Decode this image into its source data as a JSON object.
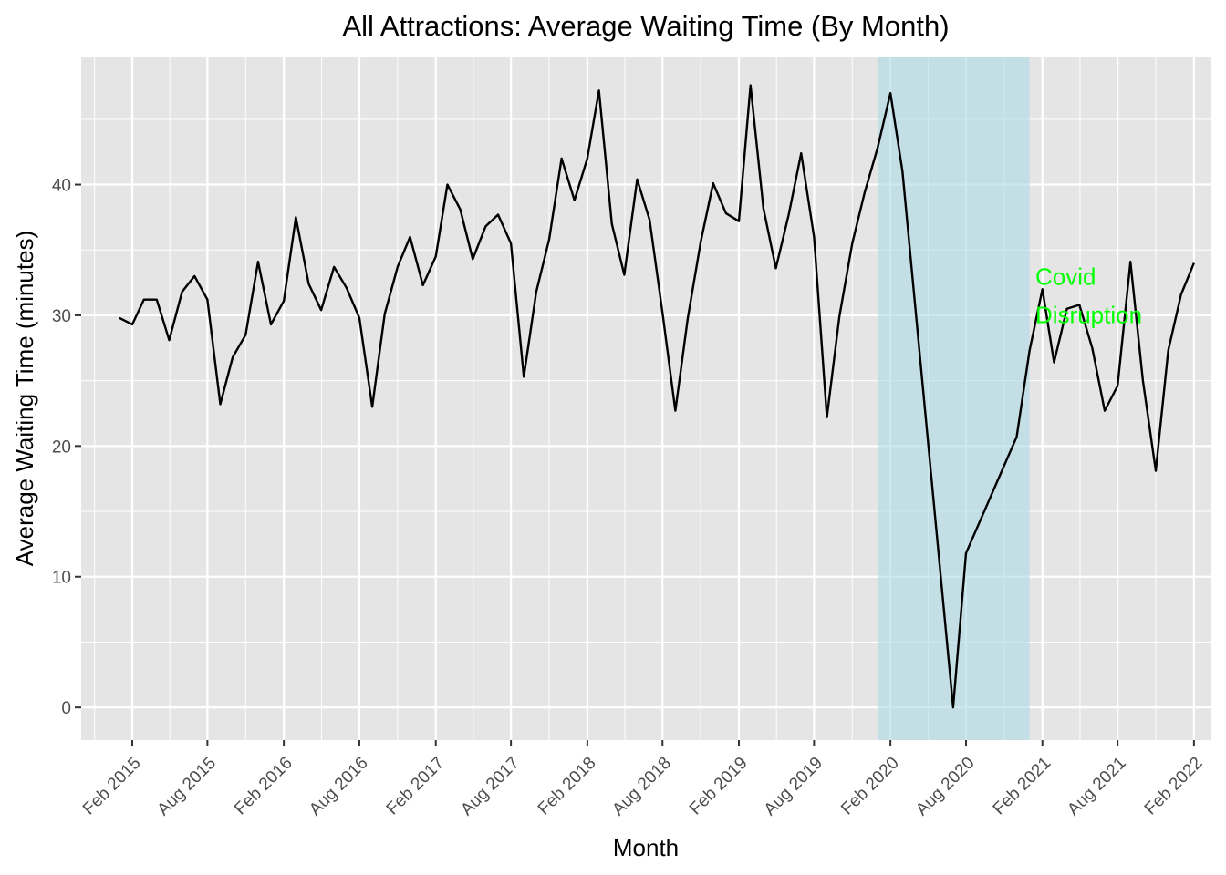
{
  "chart_data": {
    "type": "line",
    "title": "All Attractions: Average Waiting Time (By Month)",
    "xlabel": "Month",
    "ylabel": "Average Waiting Time (minutes)",
    "xlim": [
      "2014-10-01",
      "2022-03-15"
    ],
    "ylim": [
      -2.5,
      49.8
    ],
    "x_ticks": [
      {
        "date": "2015-02-01",
        "label": "Feb 2015"
      },
      {
        "date": "2015-08-01",
        "label": "Aug 2015"
      },
      {
        "date": "2016-02-01",
        "label": "Feb 2016"
      },
      {
        "date": "2016-08-01",
        "label": "Aug 2016"
      },
      {
        "date": "2017-02-01",
        "label": "Feb 2017"
      },
      {
        "date": "2017-08-01",
        "label": "Aug 2017"
      },
      {
        "date": "2018-02-01",
        "label": "Feb 2018"
      },
      {
        "date": "2018-08-01",
        "label": "Aug 2018"
      },
      {
        "date": "2019-02-01",
        "label": "Feb 2019"
      },
      {
        "date": "2019-08-01",
        "label": "Aug 2019"
      },
      {
        "date": "2020-02-01",
        "label": "Feb 2020"
      },
      {
        "date": "2020-08-01",
        "label": "Aug 2020"
      },
      {
        "date": "2021-02-01",
        "label": "Feb 2021"
      },
      {
        "date": "2021-08-01",
        "label": "Aug 2021"
      },
      {
        "date": "2022-02-01",
        "label": "Feb 2022"
      }
    ],
    "y_ticks": [
      0,
      10,
      20,
      30,
      40
    ],
    "grid": true,
    "legend": "none",
    "colors": {
      "panel": "#e5e5e5",
      "grid": "#ffffff",
      "line": "#000000",
      "highlight": "#add8e6",
      "annotation": "#00ff00"
    },
    "highlight_region": {
      "start": "2020-01-01",
      "end": "2021-01-01"
    },
    "annotation": {
      "lines": [
        "Covid",
        "Disruption"
      ],
      "date": "2021-01-15",
      "y": 32
    },
    "series": [
      {
        "points": [
          [
            "2015-01-01",
            29.8
          ],
          [
            "2015-02-01",
            29.3
          ],
          [
            "2015-03-01",
            31.2
          ],
          [
            "2015-04-01",
            31.2
          ],
          [
            "2015-05-01",
            28.1
          ],
          [
            "2015-06-01",
            31.8
          ],
          [
            "2015-07-01",
            33.0
          ],
          [
            "2015-08-01",
            31.2
          ],
          [
            "2015-09-01",
            23.2
          ],
          [
            "2015-10-01",
            26.8
          ],
          [
            "2015-11-01",
            28.5
          ],
          [
            "2015-12-01",
            34.1
          ],
          [
            "2016-01-01",
            29.3
          ],
          [
            "2016-02-01",
            31.1
          ],
          [
            "2016-03-01",
            37.5
          ],
          [
            "2016-04-01",
            32.4
          ],
          [
            "2016-05-01",
            30.4
          ],
          [
            "2016-06-01",
            33.7
          ],
          [
            "2016-07-01",
            32.1
          ],
          [
            "2016-08-01",
            29.8
          ],
          [
            "2016-09-01",
            23.0
          ],
          [
            "2016-10-01",
            30.1
          ],
          [
            "2016-11-01",
            33.7
          ],
          [
            "2016-12-01",
            36.0
          ],
          [
            "2017-01-01",
            32.3
          ],
          [
            "2017-02-01",
            34.5
          ],
          [
            "2017-03-01",
            40.0
          ],
          [
            "2017-04-01",
            38.1
          ],
          [
            "2017-05-01",
            34.3
          ],
          [
            "2017-06-01",
            36.8
          ],
          [
            "2017-07-01",
            37.7
          ],
          [
            "2017-08-01",
            35.5
          ],
          [
            "2017-09-01",
            25.3
          ],
          [
            "2017-10-01",
            31.8
          ],
          [
            "2017-11-01",
            35.8
          ],
          [
            "2017-12-01",
            42.0
          ],
          [
            "2018-01-01",
            38.8
          ],
          [
            "2018-02-01",
            42.0
          ],
          [
            "2018-03-01",
            47.2
          ],
          [
            "2018-04-01",
            37.0
          ],
          [
            "2018-05-01",
            33.1
          ],
          [
            "2018-06-01",
            40.4
          ],
          [
            "2018-07-01",
            37.3
          ],
          [
            "2018-08-01",
            30.2
          ],
          [
            "2018-09-01",
            22.7
          ],
          [
            "2018-10-01",
            29.8
          ],
          [
            "2018-11-01",
            35.6
          ],
          [
            "2018-12-01",
            40.1
          ],
          [
            "2019-01-01",
            37.8
          ],
          [
            "2019-02-01",
            37.2
          ],
          [
            "2019-03-01",
            47.6
          ],
          [
            "2019-04-01",
            38.2
          ],
          [
            "2019-05-01",
            33.6
          ],
          [
            "2019-06-01",
            37.7
          ],
          [
            "2019-07-01",
            42.4
          ],
          [
            "2019-08-01",
            36.0
          ],
          [
            "2019-09-01",
            22.2
          ],
          [
            "2019-10-01",
            29.9
          ],
          [
            "2019-11-01",
            35.5
          ],
          [
            "2019-12-01",
            39.4
          ],
          [
            "2020-01-01",
            42.8
          ],
          [
            "2020-02-01",
            47.0
          ],
          [
            "2020-03-01",
            41.0
          ],
          [
            "2020-07-01",
            0.0
          ],
          [
            "2020-08-01",
            11.8
          ],
          [
            "2020-12-01",
            20.7
          ],
          [
            "2021-01-01",
            27.3
          ],
          [
            "2021-02-01",
            32.0
          ],
          [
            "2021-03-01",
            26.4
          ],
          [
            "2021-04-01",
            30.5
          ],
          [
            "2021-05-01",
            30.8
          ],
          [
            "2021-06-01",
            27.5
          ],
          [
            "2021-07-01",
            22.7
          ],
          [
            "2021-08-01",
            24.6
          ],
          [
            "2021-09-01",
            34.1
          ],
          [
            "2021-10-01",
            25.0
          ],
          [
            "2021-11-01",
            18.1
          ],
          [
            "2021-12-01",
            27.3
          ],
          [
            "2022-01-01",
            31.6
          ],
          [
            "2022-02-01",
            34.0
          ]
        ]
      }
    ]
  }
}
